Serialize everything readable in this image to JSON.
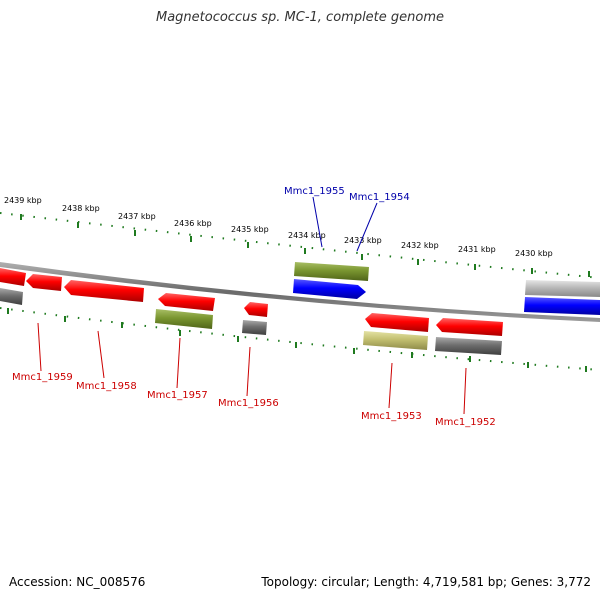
{
  "title": "Magnetococcus sp. MC-1, complete genome",
  "footer": {
    "accession": "Accession: NC_008576",
    "info": "Topology: circular; Length: 4,719,581 bp; Genes: 3,772"
  },
  "colors": {
    "tick": "#1f7a1f",
    "label_red": "#cc0000",
    "label_blue": "#0000aa",
    "backbone": "#8a8a8a"
  },
  "scale": {
    "labels": [
      "2439 kbp",
      "2438 kbp",
      "2437 kbp",
      "2436 kbp",
      "2435 kbp",
      "2434 kbp",
      "2433 kbp",
      "2432 kbp",
      "2431 kbp",
      "2430 kbp"
    ]
  },
  "gene_labels": {
    "top": [
      "Mmc1_1955",
      "Mmc1_1954"
    ],
    "bottom": [
      "Mmc1_1959",
      "Mmc1_1958",
      "Mmc1_1957",
      "Mmc1_1956",
      "Mmc1_1953",
      "Mmc1_1952"
    ]
  },
  "features": [
    {
      "id": "f1",
      "color": "red",
      "strand": "reverse"
    },
    {
      "id": "f2",
      "color": "gray",
      "strand": "reverse"
    },
    {
      "id": "f3",
      "color": "red",
      "strand": "reverse"
    },
    {
      "id": "f4",
      "color": "red",
      "strand": "reverse"
    },
    {
      "id": "f5",
      "color": "red",
      "strand": "reverse"
    },
    {
      "id": "f6",
      "color": "olive",
      "strand": "reverse"
    },
    {
      "id": "f7",
      "color": "red",
      "strand": "reverse"
    },
    {
      "id": "f8",
      "color": "gray",
      "strand": "reverse"
    },
    {
      "id": "f9",
      "color": "olive",
      "strand": "forward"
    },
    {
      "id": "f10",
      "color": "blue",
      "strand": "forward"
    },
    {
      "id": "f11",
      "color": "red",
      "strand": "reverse"
    },
    {
      "id": "f12",
      "color": "khaki",
      "strand": "reverse"
    },
    {
      "id": "f13",
      "color": "red",
      "strand": "reverse"
    },
    {
      "id": "f14",
      "color": "gray",
      "strand": "reverse"
    },
    {
      "id": "f15",
      "color": "lightgray",
      "strand": "forward"
    },
    {
      "id": "f16",
      "color": "blue",
      "strand": "forward"
    }
  ]
}
